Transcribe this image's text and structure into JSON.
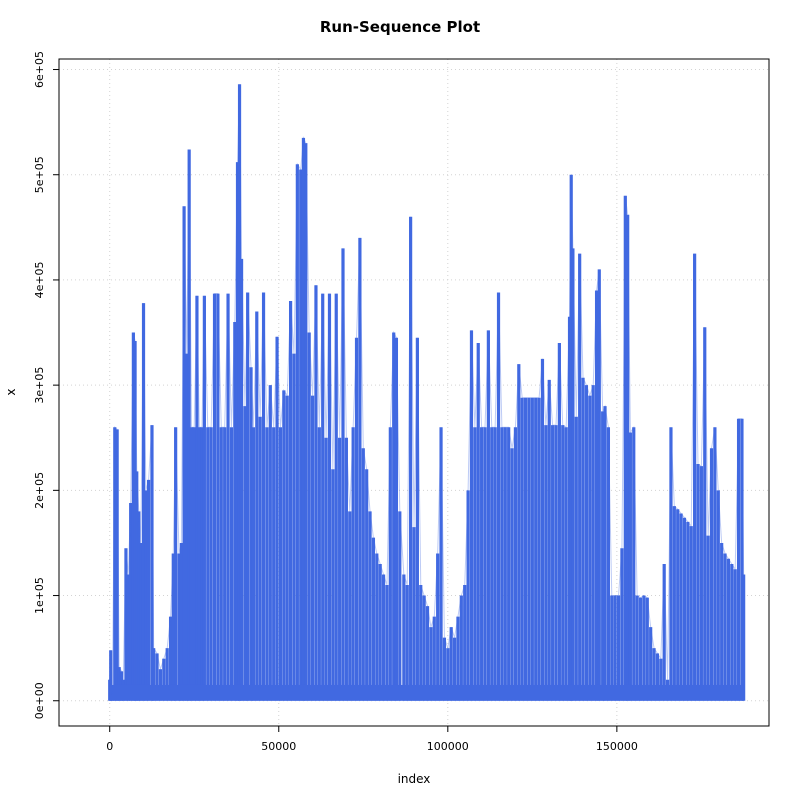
{
  "chart_data": {
    "type": "line",
    "title": "Run-Sequence Plot",
    "xlabel": "index",
    "ylabel": "x",
    "xlim": [
      -15000,
      195000
    ],
    "ylim": [
      -24000,
      610000
    ],
    "x_ticks": [
      0,
      50000,
      100000,
      150000
    ],
    "x_tick_labels": [
      "0",
      "50000",
      "100000",
      "150000"
    ],
    "y_ticks": [
      0,
      100000,
      200000,
      300000,
      400000,
      500000,
      600000
    ],
    "y_tick_labels": [
      "0e+00",
      "1e+05",
      "2e+05",
      "3e+05",
      "4e+05",
      "5e+05",
      "6e+05"
    ],
    "grid": true,
    "series_color": "#4169E1",
    "grid_color": "#d3d3d3",
    "points": [
      [
        0,
        20000
      ],
      [
        300,
        48000
      ],
      [
        800,
        5000
      ],
      [
        1500,
        260000
      ],
      [
        2200,
        258000
      ],
      [
        2800,
        32000
      ],
      [
        3500,
        28000
      ],
      [
        4000,
        20000
      ],
      [
        4800,
        145000
      ],
      [
        5500,
        120000
      ],
      [
        6200,
        188000
      ],
      [
        7000,
        350000
      ],
      [
        7500,
        342000
      ],
      [
        8000,
        218000
      ],
      [
        8600,
        180000
      ],
      [
        9200,
        150000
      ],
      [
        10000,
        378000
      ],
      [
        10700,
        200000
      ],
      [
        11500,
        210000
      ],
      [
        12500,
        262000
      ],
      [
        13000,
        50000
      ],
      [
        14000,
        45000
      ],
      [
        15000,
        30000
      ],
      [
        16000,
        40000
      ],
      [
        17000,
        50000
      ],
      [
        18000,
        80000
      ],
      [
        18800,
        140000
      ],
      [
        19500,
        260000
      ],
      [
        20500,
        140000
      ],
      [
        21200,
        150000
      ],
      [
        22000,
        470000
      ],
      [
        22800,
        330000
      ],
      [
        23500,
        524000
      ],
      [
        24200,
        260000
      ],
      [
        25000,
        260000
      ],
      [
        25800,
        385000
      ],
      [
        26500,
        260000
      ],
      [
        27300,
        260000
      ],
      [
        28000,
        385000
      ],
      [
        29000,
        260000
      ],
      [
        30000,
        260000
      ],
      [
        31000,
        387000
      ],
      [
        32000,
        387000
      ],
      [
        33000,
        260000
      ],
      [
        34000,
        260000
      ],
      [
        35000,
        387000
      ],
      [
        36000,
        260000
      ],
      [
        37000,
        360000
      ],
      [
        37800,
        512000
      ],
      [
        38400,
        586000
      ],
      [
        39000,
        420000
      ],
      [
        40000,
        280000
      ],
      [
        40800,
        388000
      ],
      [
        41800,
        317000
      ],
      [
        42500,
        260000
      ],
      [
        43500,
        370000
      ],
      [
        44500,
        270000
      ],
      [
        45500,
        388000
      ],
      [
        46500,
        260000
      ],
      [
        47500,
        300000
      ],
      [
        48500,
        260000
      ],
      [
        49500,
        346000
      ],
      [
        50500,
        260000
      ],
      [
        51500,
        295000
      ],
      [
        52500,
        290000
      ],
      [
        53500,
        380000
      ],
      [
        54500,
        330000
      ],
      [
        55500,
        510000
      ],
      [
        56500,
        505000
      ],
      [
        57300,
        535000
      ],
      [
        58000,
        530000
      ],
      [
        59000,
        350000
      ],
      [
        60000,
        290000
      ],
      [
        61000,
        395000
      ],
      [
        62000,
        260000
      ],
      [
        63000,
        387000
      ],
      [
        64000,
        250000
      ],
      [
        65000,
        387000
      ],
      [
        66000,
        220000
      ],
      [
        67000,
        387000
      ],
      [
        68000,
        250000
      ],
      [
        69000,
        430000
      ],
      [
        70000,
        250000
      ],
      [
        71000,
        180000
      ],
      [
        72000,
        260000
      ],
      [
        73000,
        345000
      ],
      [
        74000,
        440000
      ],
      [
        75000,
        240000
      ],
      [
        76000,
        220000
      ],
      [
        77000,
        180000
      ],
      [
        78000,
        155000
      ],
      [
        79000,
        140000
      ],
      [
        80000,
        130000
      ],
      [
        81000,
        120000
      ],
      [
        82000,
        110000
      ],
      [
        83000,
        260000
      ],
      [
        84000,
        350000
      ],
      [
        84800,
        345000
      ],
      [
        85800,
        180000
      ],
      [
        87000,
        120000
      ],
      [
        88000,
        110000
      ],
      [
        89000,
        460000
      ],
      [
        90000,
        165000
      ],
      [
        91000,
        345000
      ],
      [
        92000,
        110000
      ],
      [
        93000,
        100000
      ],
      [
        94000,
        90000
      ],
      [
        95000,
        70000
      ],
      [
        96000,
        80000
      ],
      [
        97000,
        140000
      ],
      [
        98000,
        260000
      ],
      [
        99000,
        60000
      ],
      [
        100000,
        50000
      ],
      [
        101000,
        70000
      ],
      [
        102000,
        60000
      ],
      [
        103000,
        80000
      ],
      [
        104000,
        100000
      ],
      [
        105000,
        110000
      ],
      [
        106000,
        200000
      ],
      [
        107000,
        352000
      ],
      [
        108000,
        260000
      ],
      [
        109000,
        340000
      ],
      [
        110000,
        260000
      ],
      [
        111000,
        260000
      ],
      [
        112000,
        352000
      ],
      [
        113000,
        260000
      ],
      [
        114000,
        260000
      ],
      [
        115000,
        388000
      ],
      [
        116000,
        260000
      ],
      [
        117000,
        260000
      ],
      [
        118000,
        260000
      ],
      [
        119000,
        240000
      ],
      [
        120000,
        260000
      ],
      [
        121000,
        320000
      ],
      [
        122000,
        288000
      ],
      [
        123000,
        288000
      ],
      [
        124000,
        288000
      ],
      [
        125000,
        288000
      ],
      [
        126000,
        288000
      ],
      [
        127000,
        288000
      ],
      [
        128000,
        325000
      ],
      [
        129000,
        262000
      ],
      [
        130000,
        305000
      ],
      [
        131000,
        262000
      ],
      [
        132000,
        262000
      ],
      [
        133000,
        340000
      ],
      [
        134000,
        262000
      ],
      [
        135000,
        260000
      ],
      [
        136000,
        365000
      ],
      [
        136500,
        500000
      ],
      [
        137000,
        430000
      ],
      [
        138000,
        270000
      ],
      [
        139000,
        425000
      ],
      [
        140000,
        307000
      ],
      [
        141000,
        300000
      ],
      [
        142000,
        290000
      ],
      [
        143000,
        300000
      ],
      [
        144000,
        390000
      ],
      [
        144800,
        410000
      ],
      [
        145800,
        275000
      ],
      [
        146500,
        280000
      ],
      [
        147500,
        260000
      ],
      [
        148500,
        100000
      ],
      [
        149500,
        100000
      ],
      [
        150500,
        100000
      ],
      [
        151500,
        145000
      ],
      [
        152500,
        480000
      ],
      [
        153200,
        462000
      ],
      [
        154000,
        255000
      ],
      [
        155000,
        260000
      ],
      [
        156000,
        100000
      ],
      [
        157000,
        98000
      ],
      [
        158000,
        100000
      ],
      [
        159000,
        98000
      ],
      [
        160000,
        70000
      ],
      [
        161000,
        50000
      ],
      [
        162000,
        45000
      ],
      [
        163000,
        40000
      ],
      [
        164000,
        130000
      ],
      [
        165000,
        20000
      ],
      [
        166000,
        260000
      ],
      [
        167000,
        185000
      ],
      [
        168000,
        182000
      ],
      [
        169000,
        178000
      ],
      [
        170000,
        174000
      ],
      [
        171000,
        170000
      ],
      [
        172000,
        166000
      ],
      [
        173000,
        425000
      ],
      [
        174000,
        225000
      ],
      [
        175000,
        223000
      ],
      [
        176000,
        355000
      ],
      [
        177000,
        157000
      ],
      [
        178000,
        240000
      ],
      [
        179000,
        260000
      ],
      [
        180000,
        200000
      ],
      [
        181000,
        150000
      ],
      [
        182000,
        140000
      ],
      [
        183000,
        135000
      ],
      [
        184000,
        130000
      ],
      [
        185000,
        125000
      ],
      [
        186000,
        268000
      ],
      [
        187000,
        268000
      ],
      [
        187500,
        120000
      ]
    ]
  }
}
